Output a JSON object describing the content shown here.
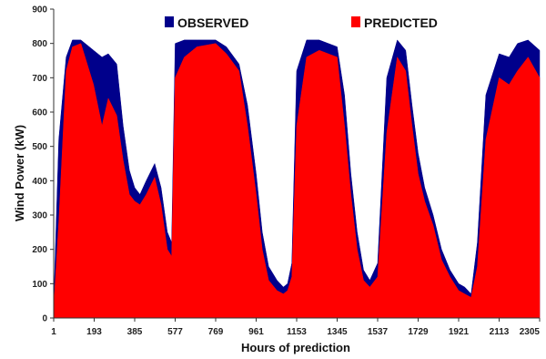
{
  "chart_data": {
    "type": "area",
    "xlabel": "Hours of prediction",
    "ylabel": "Wind Power (kW)",
    "xlim": [
      1,
      2305
    ],
    "ylim": [
      0,
      900
    ],
    "x_ticks": [
      1,
      193,
      385,
      577,
      769,
      961,
      1153,
      1345,
      1537,
      1729,
      1921,
      2113,
      2305
    ],
    "y_ticks": [
      0,
      100,
      200,
      300,
      400,
      500,
      600,
      700,
      800,
      900
    ],
    "grid": false,
    "legend_position": "top",
    "series": [
      {
        "name": "OBSERVED",
        "color": "#00008b",
        "x": [
          1,
          25,
          60,
          90,
          130,
          190,
          230,
          260,
          300,
          330,
          360,
          385,
          410,
          440,
          480,
          510,
          540,
          560,
          577,
          620,
          680,
          769,
          820,
          880,
          920,
          961,
          990,
          1020,
          1060,
          1090,
          1110,
          1130,
          1153,
          1200,
          1260,
          1345,
          1380,
          1410,
          1440,
          1470,
          1500,
          1537,
          1580,
          1630,
          1670,
          1700,
          1729,
          1760,
          1800,
          1840,
          1880,
          1921,
          1950,
          1980,
          2010,
          2050,
          2113,
          2160,
          2200,
          2250,
          2305
        ],
        "values": [
          40,
          520,
          760,
          810,
          810,
          780,
          760,
          770,
          740,
          560,
          430,
          380,
          360,
          400,
          450,
          380,
          250,
          220,
          800,
          810,
          810,
          810,
          790,
          740,
          620,
          420,
          250,
          150,
          110,
          90,
          100,
          160,
          720,
          810,
          810,
          790,
          650,
          420,
          250,
          140,
          110,
          160,
          700,
          810,
          780,
          620,
          480,
          380,
          300,
          200,
          140,
          100,
          90,
          70,
          220,
          650,
          770,
          760,
          800,
          810,
          780
        ]
      },
      {
        "name": "PREDICTED",
        "color": "#ff0000",
        "x": [
          1,
          25,
          60,
          90,
          130,
          190,
          230,
          260,
          300,
          330,
          360,
          385,
          410,
          440,
          480,
          510,
          540,
          560,
          577,
          620,
          680,
          769,
          820,
          880,
          920,
          961,
          990,
          1020,
          1060,
          1090,
          1110,
          1130,
          1153,
          1200,
          1260,
          1345,
          1380,
          1410,
          1440,
          1470,
          1500,
          1537,
          1580,
          1630,
          1670,
          1700,
          1729,
          1760,
          1800,
          1840,
          1880,
          1921,
          1950,
          1980,
          2010,
          2050,
          2113,
          2160,
          2200,
          2250,
          2305
        ],
        "values": [
          30,
          280,
          720,
          790,
          800,
          680,
          560,
          640,
          590,
          460,
          360,
          340,
          330,
          360,
          410,
          330,
          200,
          180,
          700,
          760,
          790,
          800,
          770,
          720,
          560,
          360,
          200,
          110,
          80,
          70,
          80,
          120,
          560,
          760,
          780,
          760,
          560,
          360,
          200,
          110,
          90,
          120,
          540,
          760,
          720,
          560,
          420,
          340,
          270,
          170,
          120,
          80,
          70,
          60,
          150,
          520,
          700,
          680,
          720,
          760,
          700
        ]
      }
    ]
  }
}
